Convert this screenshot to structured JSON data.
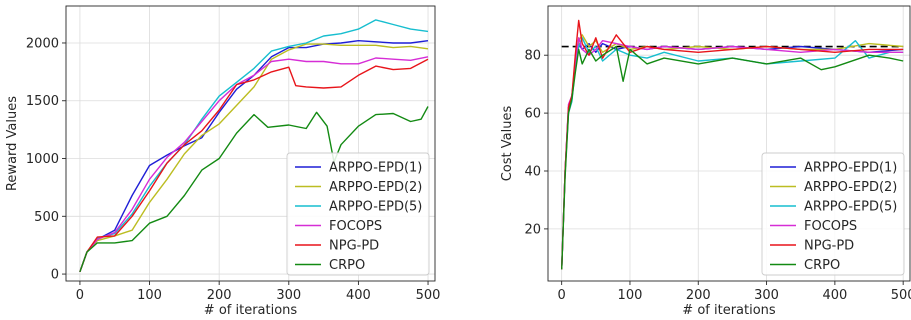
{
  "colors": {
    "ARPPO-EPD(1)": "#1f1fd6",
    "ARPPO-EPD(2)": "#bcbd22",
    "ARPPO-EPD(5)": "#17becf",
    "FOCOPS": "#d62dd6",
    "NPG-PD": "#e8141a",
    "CRPO": "#138a13",
    "reference": "#000000"
  },
  "chart_data": [
    {
      "type": "line",
      "xlabel": "# of iterations",
      "ylabel": "Reward Values",
      "xlim": [
        -20,
        510
      ],
      "ylim": [
        -60,
        2320
      ],
      "xticks": [
        0,
        100,
        200,
        300,
        400,
        500
      ],
      "yticks": [
        0,
        500,
        1000,
        1500,
        2000
      ],
      "grid": true,
      "legend": "lower-right",
      "series": [
        {
          "name": "ARPPO-EPD(1)",
          "x": [
            0,
            10,
            25,
            50,
            75,
            100,
            125,
            150,
            175,
            200,
            225,
            250,
            275,
            300,
            325,
            350,
            375,
            400,
            425,
            450,
            475,
            500
          ],
          "y": [
            20,
            190,
            300,
            380,
            680,
            940,
            1030,
            1110,
            1180,
            1400,
            1600,
            1720,
            1880,
            1960,
            1960,
            1990,
            2000,
            2020,
            2010,
            2000,
            2000,
            2020
          ]
        },
        {
          "name": "ARPPO-EPD(2)",
          "x": [
            0,
            10,
            25,
            50,
            75,
            100,
            125,
            150,
            175,
            200,
            225,
            250,
            275,
            300,
            325,
            350,
            375,
            400,
            425,
            450,
            475,
            500
          ],
          "y": [
            20,
            190,
            290,
            330,
            380,
            620,
            820,
            1040,
            1200,
            1300,
            1460,
            1620,
            1860,
            1940,
            1990,
            1990,
            1980,
            1980,
            1980,
            1960,
            1970,
            1950
          ]
        },
        {
          "name": "ARPPO-EPD(5)",
          "x": [
            0,
            10,
            25,
            50,
            75,
            100,
            125,
            150,
            175,
            200,
            225,
            250,
            275,
            300,
            325,
            350,
            375,
            400,
            425,
            450,
            475,
            500
          ],
          "y": [
            20,
            190,
            310,
            350,
            520,
            760,
            960,
            1120,
            1340,
            1540,
            1660,
            1780,
            1930,
            1970,
            2000,
            2060,
            2080,
            2120,
            2200,
            2160,
            2120,
            2100
          ]
        },
        {
          "name": "FOCOPS",
          "x": [
            0,
            10,
            25,
            50,
            75,
            100,
            125,
            150,
            175,
            200,
            225,
            250,
            275,
            300,
            325,
            350,
            375,
            400,
            425,
            450,
            475,
            500
          ],
          "y": [
            20,
            190,
            300,
            360,
            560,
            820,
            1010,
            1140,
            1320,
            1500,
            1640,
            1720,
            1840,
            1860,
            1840,
            1840,
            1820,
            1820,
            1870,
            1860,
            1850,
            1880
          ]
        },
        {
          "name": "NPG-PD",
          "x": [
            0,
            10,
            25,
            50,
            75,
            100,
            125,
            150,
            175,
            200,
            225,
            250,
            275,
            300,
            310,
            325,
            350,
            375,
            400,
            425,
            450,
            475,
            500
          ],
          "y": [
            20,
            190,
            320,
            330,
            500,
            720,
            960,
            1120,
            1240,
            1420,
            1640,
            1680,
            1750,
            1790,
            1630,
            1620,
            1610,
            1620,
            1720,
            1800,
            1770,
            1780,
            1860
          ]
        },
        {
          "name": "CRPO",
          "x": [
            0,
            10,
            25,
            50,
            75,
            100,
            125,
            150,
            175,
            200,
            225,
            250,
            270,
            300,
            325,
            340,
            355,
            365,
            375,
            400,
            425,
            450,
            475,
            490,
            500
          ],
          "y": [
            20,
            190,
            270,
            270,
            290,
            440,
            500,
            680,
            900,
            1000,
            1220,
            1380,
            1270,
            1290,
            1260,
            1400,
            1280,
            970,
            1120,
            1280,
            1380,
            1390,
            1320,
            1340,
            1450
          ]
        }
      ]
    },
    {
      "type": "line",
      "xlabel": "# of iterations",
      "ylabel": "Cost Values",
      "xlim": [
        -20,
        510
      ],
      "ylim": [
        2,
        97
      ],
      "xticks": [
        0,
        100,
        200,
        300,
        400,
        500
      ],
      "yticks": [
        20,
        40,
        60,
        80
      ],
      "grid": true,
      "legend": "lower-right",
      "reference_line": 83,
      "series": [
        {
          "name": "ARPPO-EPD(1)",
          "x": [
            0,
            5,
            10,
            15,
            20,
            25,
            30,
            40,
            50,
            60,
            80,
            100,
            125,
            150,
            200,
            250,
            300,
            350,
            400,
            450,
            500
          ],
          "y": [
            6,
            40,
            62,
            66,
            76,
            84,
            82,
            84,
            81,
            84,
            82,
            83,
            82,
            83,
            82,
            83,
            82,
            83,
            82,
            81,
            82
          ]
        },
        {
          "name": "ARPPO-EPD(2)",
          "x": [
            0,
            5,
            10,
            15,
            20,
            25,
            30,
            40,
            50,
            60,
            80,
            100,
            125,
            150,
            200,
            250,
            300,
            350,
            400,
            450,
            500
          ],
          "y": [
            6,
            40,
            61,
            65,
            77,
            85,
            87,
            83,
            85,
            81,
            84,
            82,
            83,
            82,
            83,
            82,
            83,
            82,
            82,
            84,
            83
          ]
        },
        {
          "name": "ARPPO-EPD(5)",
          "x": [
            0,
            5,
            10,
            15,
            20,
            25,
            30,
            40,
            50,
            60,
            80,
            100,
            125,
            150,
            200,
            250,
            300,
            350,
            400,
            430,
            450,
            480,
            500
          ],
          "y": [
            6,
            40,
            60,
            64,
            76,
            83,
            86,
            81,
            83,
            78,
            82,
            80,
            79,
            81,
            78,
            79,
            77,
            78,
            79,
            85,
            79,
            81,
            81
          ]
        },
        {
          "name": "FOCOPS",
          "x": [
            0,
            5,
            10,
            15,
            20,
            25,
            30,
            40,
            50,
            60,
            80,
            100,
            125,
            150,
            200,
            250,
            300,
            350,
            400,
            450,
            500
          ],
          "y": [
            6,
            40,
            63,
            66,
            78,
            86,
            82,
            80,
            82,
            85,
            84,
            83,
            82,
            83,
            82,
            83,
            82,
            81,
            82,
            81,
            81
          ]
        },
        {
          "name": "NPG-PD",
          "x": [
            0,
            5,
            10,
            15,
            20,
            25,
            30,
            40,
            50,
            60,
            80,
            100,
            125,
            150,
            200,
            250,
            300,
            350,
            400,
            450,
            500
          ],
          "y": [
            6,
            40,
            62,
            66,
            80,
            92,
            84,
            80,
            86,
            79,
            87,
            81,
            83,
            82,
            81,
            82,
            83,
            82,
            81,
            82,
            82
          ]
        },
        {
          "name": "CRPO",
          "x": [
            0,
            5,
            10,
            15,
            20,
            25,
            30,
            40,
            50,
            60,
            80,
            90,
            100,
            125,
            150,
            200,
            250,
            300,
            350,
            380,
            400,
            450,
            480,
            500
          ],
          "y": [
            6,
            38,
            60,
            65,
            74,
            82,
            77,
            82,
            78,
            80,
            83,
            71,
            82,
            77,
            79,
            77,
            79,
            77,
            79,
            75,
            76,
            80,
            79,
            78
          ]
        }
      ]
    }
  ]
}
